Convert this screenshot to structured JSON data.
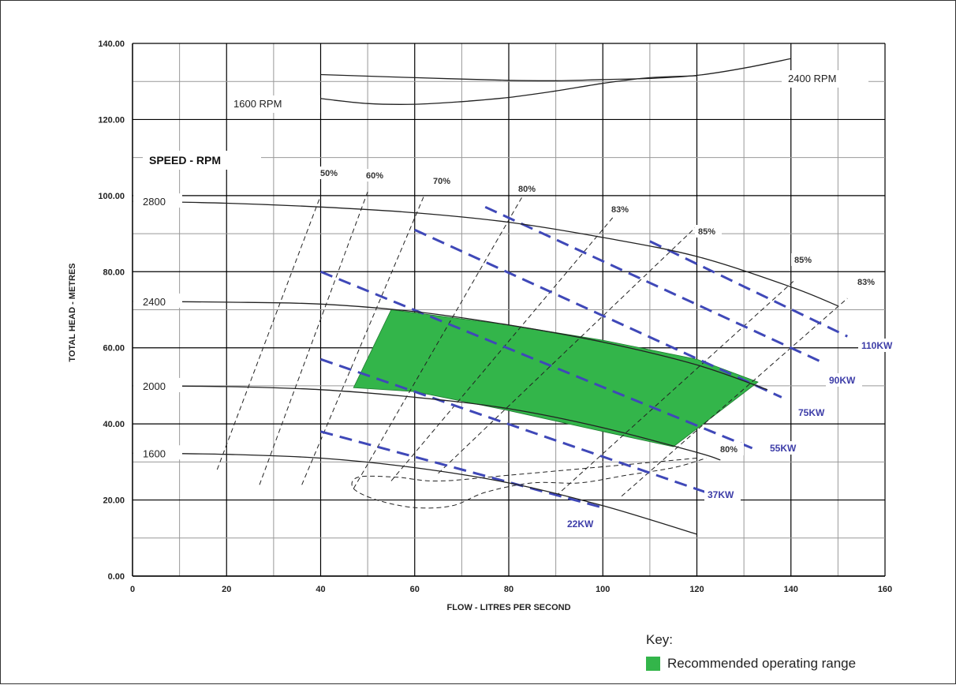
{
  "colors": {
    "region": "#33b54a",
    "power": "#3f48b8",
    "curve": "#222222",
    "grid": "#000000",
    "gridMinor": "#999999"
  },
  "chart_data": {
    "type": "line",
    "xlabel": "FLOW  -  LITRES PER SECOND",
    "ylabel": "TOTAL HEAD  -  METRES",
    "xlim": [
      0,
      160
    ],
    "ylim": [
      0,
      140
    ],
    "xticks": [
      "0",
      "20",
      "40",
      "60",
      "80",
      "100",
      "120",
      "140",
      "160"
    ],
    "yticks": [
      "0.00",
      "20.00",
      "40.00",
      "60.00",
      "80.00",
      "100.00",
      "120.00",
      "140.00"
    ],
    "speed_header": "SPEED - RPM",
    "speed_curves": [
      {
        "name": "2800",
        "x": [
          0,
          20,
          40,
          60,
          80,
          100,
          120,
          140,
          150
        ],
        "y": [
          98.5,
          98,
          97,
          95.5,
          93,
          89,
          84,
          76,
          71
        ]
      },
      {
        "name": "2400",
        "x": [
          0,
          20,
          40,
          60,
          80,
          100,
          120,
          135
        ],
        "y": [
          72.2,
          72,
          71.5,
          69.5,
          66,
          61.5,
          55.5,
          49
        ]
      },
      {
        "name": "2000",
        "x": [
          0,
          20,
          40,
          60,
          80,
          100,
          120,
          125
        ],
        "y": [
          50,
          49.8,
          49,
          47,
          44,
          39,
          32.5,
          30.5
        ]
      },
      {
        "name": "1600",
        "x": [
          0,
          20,
          40,
          60,
          80,
          100,
          120
        ],
        "y": [
          32.3,
          32,
          31,
          28.5,
          24.5,
          18.5,
          11
        ]
      }
    ],
    "note_curves": [
      {
        "name": "1600 RPM",
        "x": [
          40,
          50,
          60,
          70,
          80,
          90,
          100,
          110,
          120
        ],
        "y": [
          125.5,
          124.2,
          124,
          124.7,
          125.8,
          127.5,
          129.5,
          131,
          131.5
        ]
      },
      {
        "name": "2400 RPM",
        "x": [
          40,
          60,
          80,
          90,
          100,
          110,
          120,
          130,
          140
        ],
        "y": [
          131.8,
          131,
          130.3,
          130.2,
          130.5,
          130.8,
          131.6,
          133.5,
          136
        ]
      }
    ],
    "efficiency_lines": [
      {
        "name": "50%",
        "x": [
          18,
          40
        ],
        "y": [
          28,
          100
        ]
      },
      {
        "name": "60%",
        "x": [
          27,
          50
        ],
        "y": [
          24,
          101
        ]
      },
      {
        "name": "70%",
        "x": [
          36,
          62
        ],
        "y": [
          24,
          100
        ]
      },
      {
        "name": "80%",
        "x": [
          47,
          83
        ],
        "y": [
          23,
          100
        ]
      },
      {
        "name": "83%",
        "x": [
          55,
          104
        ],
        "y": [
          25,
          97
        ]
      },
      {
        "name": "85%",
        "x": [
          65,
          120
        ],
        "y": [
          27,
          92
        ]
      },
      {
        "name": "85%",
        "x": [
          90,
          141
        ],
        "y": [
          21,
          78
        ]
      },
      {
        "name": "83%",
        "x": [
          104,
          152
        ],
        "y": [
          21,
          73
        ]
      },
      {
        "name": "80%",
        "x": [
          120,
          80,
          65,
          56,
          48,
          47,
          52,
          60,
          68,
          75,
          85,
          95,
          105,
          115,
          122
        ],
        "y": [
          31,
          26.5,
          25,
          26,
          26,
          23,
          20,
          18,
          18.5,
          22,
          24.5,
          24.5,
          26.5,
          28.5,
          31
        ]
      }
    ],
    "efficiency_labels": [
      "50%",
      "60%",
      "70%",
      "80%",
      "83%",
      "85%",
      "85%",
      "83%",
      "80%"
    ],
    "power_lines": [
      {
        "name": "110KW",
        "x": [
          110,
          152
        ],
        "y": [
          88,
          63
        ]
      },
      {
        "name": "90KW",
        "x": [
          75,
          147
        ],
        "y": [
          97,
          56
        ]
      },
      {
        "name": "75KW",
        "x": [
          60,
          138
        ],
        "y": [
          91,
          47
        ]
      },
      {
        "name": "55KW",
        "x": [
          40,
          133
        ],
        "y": [
          80,
          33
        ]
      },
      {
        "name": "37KW",
        "x": [
          40,
          122
        ],
        "y": [
          57,
          22
        ]
      },
      {
        "name": "22KW",
        "x": [
          40,
          100
        ],
        "y": [
          38,
          18
        ]
      }
    ],
    "recommended_region": {
      "name": "Recommended operating range",
      "x": [
        55,
        80,
        100,
        120,
        133,
        115,
        100,
        80,
        60,
        47
      ],
      "y": [
        70,
        66,
        62,
        57,
        51,
        34,
        38,
        43.5,
        48.5,
        49.5
      ]
    }
  },
  "key": {
    "title": "Key:",
    "items": [
      {
        "label": "Recommended operating range"
      }
    ]
  }
}
